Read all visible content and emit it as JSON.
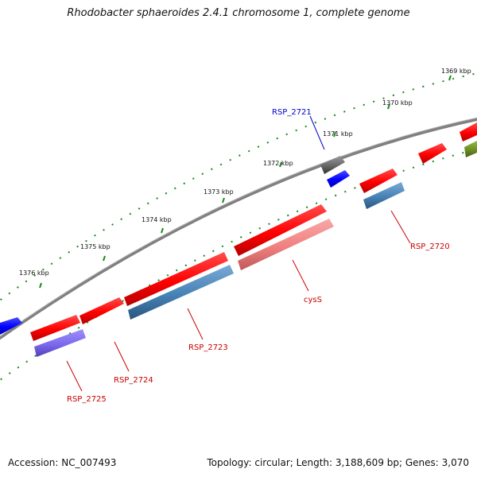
{
  "title": "Rhodobacter sphaeroides 2.4.1 chromosome 1, complete genome",
  "footer": {
    "accession": "Accession: NC_007493",
    "stats": "Topology: circular; Length: 3,188,609 bp; Genes: 3,070"
  },
  "tick_labels": [
    "1369 kbp",
    "1370 kbp",
    "1371 kbp",
    "1372 kbp",
    "1373 kbp",
    "1374 kbp",
    "1375 kbp",
    "1376 kbp"
  ],
  "genes": [
    {
      "label": "RSP_2721",
      "color": "#0000cc"
    },
    {
      "label": "RSP_2720",
      "color": "#cc0000"
    },
    {
      "label": "cysS",
      "color": "#cc0000"
    },
    {
      "label": "RSP_2723",
      "color": "#cc0000"
    },
    {
      "label": "RSP_2724",
      "color": "#cc0000"
    },
    {
      "label": "RSP_2725",
      "color": "#cc0000"
    }
  ],
  "colors": {
    "backbone": "#808080",
    "tick_marks": "#1a8a1a",
    "gene_red": "#ff0000",
    "gene_blue": "#4682b4",
    "gene_pink": "#f08080",
    "gene_purple": "#7b68ee",
    "gene_gray": "#666666",
    "gene_olive": "#6b8e23",
    "gene_darkblue": "#0000ff"
  }
}
